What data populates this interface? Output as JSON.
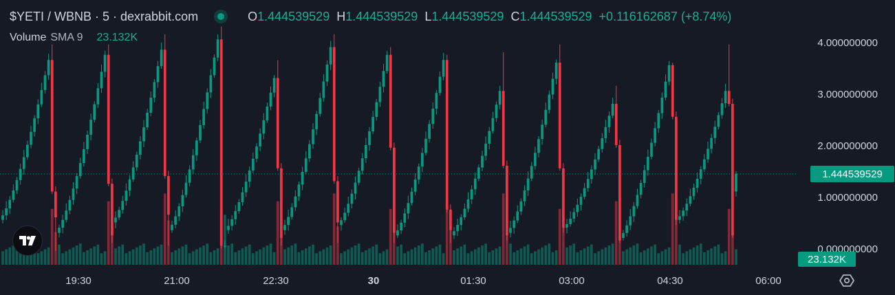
{
  "header": {
    "symbol": "$YETI / WBNB · 5 · dexrabbit.com",
    "o_label": "O",
    "o_value": "1.444539529",
    "h_label": "H",
    "h_value": "1.444539529",
    "l_label": "L",
    "l_value": "1.444539529",
    "c_label": "C",
    "c_value": "1.444539529",
    "change": "+0.116162687 (+8.74%)"
  },
  "volume_legend": {
    "title": "Volume",
    "indicator": "SMA 9",
    "value": "23.132K"
  },
  "last_price_label": "1.444539529",
  "volume_value_label": "23.132K",
  "icons": {
    "logo": "tradingview-logo-icon",
    "settings": "settings-gear-icon"
  },
  "colors": {
    "background": "#161a25",
    "up": "#089981",
    "down": "#f23645",
    "volume_up": "rgba(8,153,129,0.5)",
    "volume_down": "rgba(242,54,69,0.5)",
    "axis_text": "#d1d4dc"
  },
  "chart_data": {
    "type": "candlestick",
    "interval": "5",
    "grid": false,
    "y_axis": {
      "side": "right",
      "min": 0,
      "max": 4,
      "ticks": [
        "4.000000000",
        "3.000000000",
        "2.000000000",
        "1.000000000",
        "0.000000000"
      ]
    },
    "x_axis": {
      "ticks": [
        "19:30",
        "21:00",
        "22:30",
        "30",
        "01:30",
        "03:00",
        "04:30",
        "06:00"
      ]
    },
    "last_price": 1.444539529,
    "last_volume": "23.132K",
    "cycles": [
      {
        "start": 0.55,
        "peak": 3.65,
        "wick": 3.95,
        "drop": 1.1,
        "bottom": 0.6,
        "low": -0.05
      },
      {
        "start": 0.3,
        "peak": 3.75,
        "wick": 3.95,
        "drop": 1.25,
        "bottom": 0.25,
        "low": 0.1
      },
      {
        "start": 0.5,
        "peak": 3.85,
        "wick": 4.15,
        "drop": 1.4,
        "bottom": 0.65,
        "low": 0.05
      },
      {
        "start": 0.35,
        "peak": 4.05,
        "wick": 4.3,
        "drop": 0.05,
        "bottom": 0.05,
        "low": 0.0
      },
      {
        "start": 0.35,
        "peak": 3.3,
        "wick": 3.65,
        "drop": 1.55,
        "bottom": 0.2,
        "low": 0.05
      },
      {
        "start": 0.35,
        "peak": 3.9,
        "wick": 4.15,
        "drop": 1.3,
        "bottom": 0.5,
        "low": 0.1
      },
      {
        "start": 0.45,
        "peak": 3.75,
        "wick": 3.9,
        "drop": 1.95,
        "bottom": 0.3,
        "low": 0.1
      },
      {
        "start": 0.25,
        "peak": 3.65,
        "wick": 3.75,
        "drop": 0.75,
        "bottom": 0.35,
        "low": 0.1
      },
      {
        "start": 0.25,
        "peak": 3.05,
        "wick": 3.8,
        "drop": 1.6,
        "bottom": 0.25,
        "low": 0.15
      },
      {
        "start": 0.3,
        "peak": 3.6,
        "wick": 3.95,
        "drop": 1.55,
        "bottom": 0.4,
        "low": 0.3
      },
      {
        "start": 0.4,
        "peak": 2.8,
        "wick": 3.15,
        "drop": 2.0,
        "bottom": 0.15,
        "low": 0.1
      },
      {
        "start": 0.2,
        "peak": 3.55,
        "wick": 3.6,
        "drop": 2.55,
        "bottom": 0.55,
        "low": 0.45
      },
      {
        "start": 0.55,
        "peak": 3.05,
        "wick": 3.95,
        "drop": 2.8,
        "bottom": 0.25,
        "low": 0.2
      }
    ],
    "final": {
      "open": 1.1,
      "close": 1.444539529
    }
  }
}
